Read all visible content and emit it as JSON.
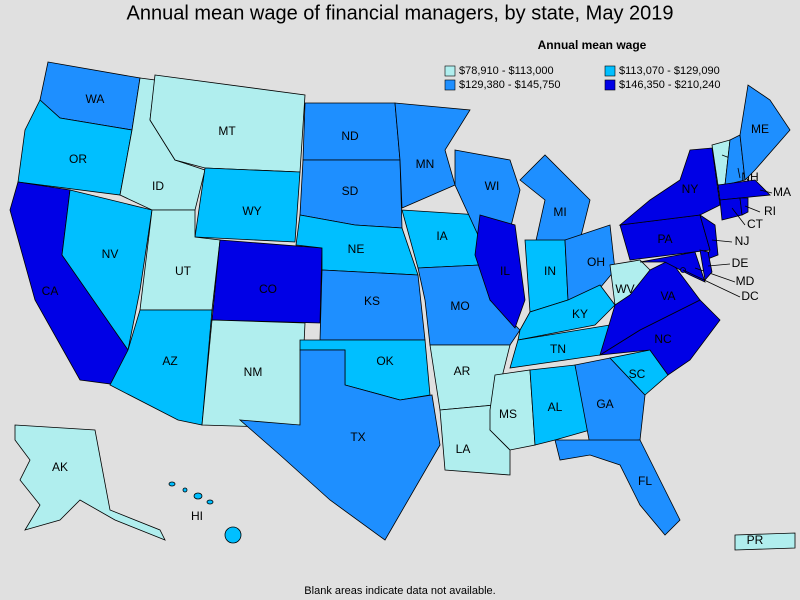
{
  "title": "Annual mean wage of financial managers, by state, May 2019",
  "legend": {
    "title": "Annual mean wage",
    "entries": [
      {
        "label": "$78,910 - $113,000",
        "color": "#b0eeee"
      },
      {
        "label": "$113,070 - $129,090",
        "color": "#00bfff"
      },
      {
        "label": "$129,380 - $145,750",
        "color": "#1e8fff"
      },
      {
        "label": "$146,350 - $210,240",
        "color": "#0000e6"
      }
    ]
  },
  "states": [
    {
      "label": "WA",
      "class": 2
    },
    {
      "label": "OR",
      "class": 1
    },
    {
      "label": "CA",
      "class": 3
    },
    {
      "label": "NV",
      "class": 1
    },
    {
      "label": "ID",
      "class": 0
    },
    {
      "label": "MT",
      "class": 0
    },
    {
      "label": "WY",
      "class": 1
    },
    {
      "label": "UT",
      "class": 0
    },
    {
      "label": "CO",
      "class": 3
    },
    {
      "label": "AZ",
      "class": 1
    },
    {
      "label": "NM",
      "class": 0
    },
    {
      "label": "ND",
      "class": 2
    },
    {
      "label": "SD",
      "class": 2
    },
    {
      "label": "NE",
      "class": 1
    },
    {
      "label": "KS",
      "class": 2
    },
    {
      "label": "OK",
      "class": 1
    },
    {
      "label": "TX",
      "class": 2
    },
    {
      "label": "MN",
      "class": 2
    },
    {
      "label": "IA",
      "class": 1
    },
    {
      "label": "MO",
      "class": 2
    },
    {
      "label": "AR",
      "class": 0
    },
    {
      "label": "LA",
      "class": 0
    },
    {
      "label": "WI",
      "class": 2
    },
    {
      "label": "IL",
      "class": 3
    },
    {
      "label": "MI",
      "class": 2
    },
    {
      "label": "IN",
      "class": 1
    },
    {
      "label": "OH",
      "class": 2
    },
    {
      "label": "KY",
      "class": 1
    },
    {
      "label": "TN",
      "class": 1
    },
    {
      "label": "MS",
      "class": 0
    },
    {
      "label": "AL",
      "class": 1
    },
    {
      "label": "GA",
      "class": 2
    },
    {
      "label": "FL",
      "class": 2
    },
    {
      "label": "SC",
      "class": 1
    },
    {
      "label": "NC",
      "class": 3
    },
    {
      "label": "VA",
      "class": 3
    },
    {
      "label": "WV",
      "class": 0
    },
    {
      "label": "PA",
      "class": 3
    },
    {
      "label": "NY",
      "class": 3
    },
    {
      "label": "NJ",
      "class": 3
    },
    {
      "label": "MD",
      "class": 3
    },
    {
      "label": "DE",
      "class": 3
    },
    {
      "label": "DC",
      "class": 3
    },
    {
      "label": "VT",
      "class": 0
    },
    {
      "label": "NH",
      "class": 2
    },
    {
      "label": "ME",
      "class": 2
    },
    {
      "label": "MA",
      "class": 3
    },
    {
      "label": "CT",
      "class": 3
    },
    {
      "label": "RI",
      "class": 3
    },
    {
      "label": "AK",
      "class": 0
    },
    {
      "label": "HI",
      "class": 1
    },
    {
      "label": "PR",
      "class": 0
    }
  ],
  "footnote": "Blank areas indicate data not available."
}
